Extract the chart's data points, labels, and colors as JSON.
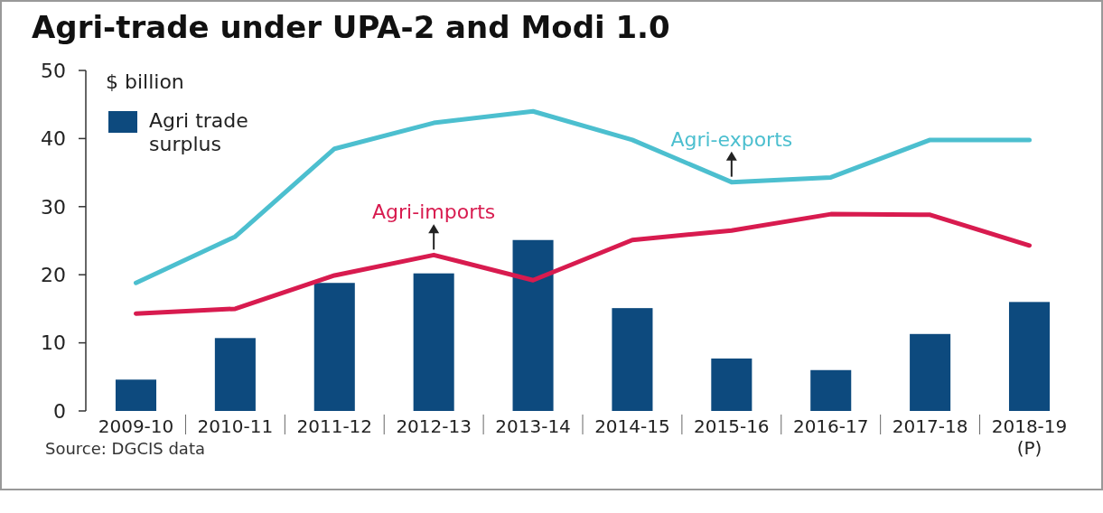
{
  "chart_data": {
    "type": "bar",
    "title": "Agri-trade under UPA-2 and Modi 1.0",
    "ylabel": "$ billion",
    "categories": [
      "2009-10",
      "2010-11",
      "2011-12",
      "2012-13",
      "2013-14",
      "2014-15",
      "2015-16",
      "2016-17",
      "2017-18",
      "2018-19 (P)"
    ],
    "series": [
      {
        "name": "Agri trade surplus",
        "color": "#0d4a7e",
        "values": [
          4.6,
          10.7,
          18.8,
          20.2,
          25.1,
          15.1,
          7.7,
          6.0,
          11.3,
          16.0
        ]
      },
      {
        "name": "Agri-exports",
        "type": "line",
        "color": "#4cbfcf",
        "values": [
          18.8,
          25.6,
          38.5,
          42.3,
          44.0,
          39.8,
          33.6,
          34.3,
          39.8,
          39.8
        ]
      },
      {
        "name": "Agri-imports",
        "type": "line",
        "color": "#d81b4f",
        "values": [
          14.3,
          15.0,
          19.9,
          22.9,
          19.2,
          25.1,
          26.5,
          28.9,
          28.8,
          24.3
        ]
      }
    ],
    "ylim": [
      0,
      50
    ],
    "yticks": [
      0,
      10,
      20,
      30,
      40,
      50
    ],
    "grid": false,
    "legend": "top left",
    "marker": "none",
    "line_style": "solid",
    "annotations": [
      "Source: DGCIS data"
    ]
  }
}
